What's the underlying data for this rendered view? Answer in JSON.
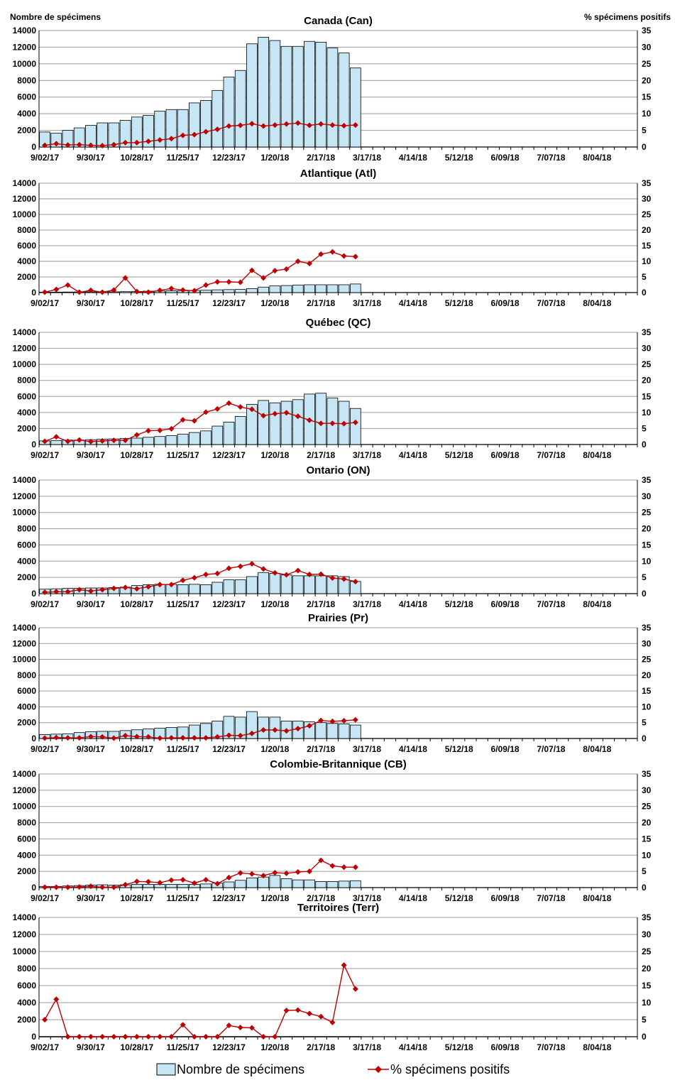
{
  "header": {
    "left_axis_label": "Nombre de spécimens",
    "right_axis_label": "% spécimens positifs"
  },
  "legend": {
    "bars_label": "Nombre de spécimens",
    "line_label": "% spécimens positifs"
  },
  "colors": {
    "bar_fill": "#c7e6f5",
    "bar_stroke": "#000000",
    "line": "#c00000",
    "grid": "#9a9a9a"
  },
  "chart_data": [
    {
      "type": "bar",
      "title": "Canada (Can)",
      "x": [
        "9/02/17",
        "9/09/17",
        "9/16/17",
        "9/23/17",
        "9/30/17",
        "10/07/17",
        "10/14/17",
        "10/21/17",
        "10/28/17",
        "11/04/17",
        "11/11/17",
        "11/18/17",
        "11/25/17",
        "12/02/17",
        "12/09/17",
        "12/16/17",
        "12/23/17",
        "12/30/17",
        "1/06/18",
        "1/13/18",
        "1/20/18",
        "1/27/18",
        "2/03/18",
        "2/10/18",
        "2/17/18",
        "2/24/18",
        "3/03/18",
        "3/10/18"
      ],
      "x_tick_labels": [
        "9/02/17",
        "9/30/17",
        "10/28/17",
        "11/25/17",
        "12/23/17",
        "1/20/18",
        "2/17/18",
        "3/17/18",
        "4/14/18",
        "5/12/18",
        "6/09/18",
        "7/07/18",
        "8/04/18"
      ],
      "ylim_left": [
        0,
        14000
      ],
      "ylim_right": [
        0,
        35
      ],
      "grid": true,
      "series": [
        {
          "name": "Nombre de spécimens",
          "type": "bar",
          "axis": "left",
          "values": [
            1800,
            1650,
            2000,
            2300,
            2600,
            2900,
            2900,
            3200,
            3600,
            3800,
            4300,
            4500,
            4500,
            5300,
            5600,
            6800,
            8400,
            9200,
            12400,
            13200,
            12800,
            12100,
            12100,
            12700,
            12600,
            11900,
            11300,
            9500
          ]
        },
        {
          "name": "% spécimens positifs",
          "type": "line",
          "axis": "right",
          "values": [
            0.5,
            1.0,
            0.6,
            0.7,
            0.5,
            0.4,
            0.7,
            1.3,
            1.3,
            1.7,
            2.1,
            2.5,
            3.5,
            3.7,
            4.6,
            5.3,
            6.3,
            6.5,
            7.0,
            6.3,
            6.6,
            6.9,
            7.2,
            6.5,
            6.9,
            6.6,
            6.4,
            6.6
          ]
        }
      ]
    },
    {
      "type": "bar",
      "title": "Atlantique (Atl)",
      "x": [
        "9/02/17",
        "9/09/17",
        "9/16/17",
        "9/23/17",
        "9/30/17",
        "10/07/17",
        "10/14/17",
        "10/21/17",
        "10/28/17",
        "11/04/17",
        "11/11/17",
        "11/18/17",
        "11/25/17",
        "12/02/17",
        "12/09/17",
        "12/16/17",
        "12/23/17",
        "12/30/17",
        "1/06/18",
        "1/13/18",
        "1/20/18",
        "1/27/18",
        "2/03/18",
        "2/10/18",
        "2/17/18",
        "2/24/18",
        "3/03/18",
        "3/10/18"
      ],
      "x_tick_labels": [
        "9/02/17",
        "9/30/17",
        "10/28/17",
        "11/25/17",
        "12/23/17",
        "1/20/18",
        "2/17/18",
        "3/17/18",
        "4/14/18",
        "5/12/18",
        "6/09/18",
        "7/07/18",
        "8/04/18"
      ],
      "ylim_left": [
        0,
        14000
      ],
      "ylim_right": [
        0,
        35
      ],
      "grid": true,
      "series": [
        {
          "name": "Nombre de spécimens",
          "type": "bar",
          "axis": "left",
          "values": [
            50,
            60,
            70,
            80,
            90,
            100,
            100,
            120,
            150,
            180,
            200,
            220,
            250,
            280,
            300,
            350,
            380,
            400,
            500,
            700,
            850,
            900,
            950,
            1000,
            1000,
            1000,
            1000,
            1100
          ]
        },
        {
          "name": "% spécimens positifs",
          "type": "line",
          "axis": "right",
          "values": [
            0.1,
            1.0,
            2.4,
            0.1,
            0.7,
            0.1,
            0.8,
            4.7,
            0.3,
            0.1,
            0.7,
            1.3,
            0.8,
            0.6,
            2.4,
            3.4,
            3.4,
            3.3,
            7.1,
            4.7,
            7.0,
            7.5,
            10.0,
            9.3,
            12.3,
            13.0,
            11.7,
            11.5
          ]
        }
      ]
    },
    {
      "type": "bar",
      "title": "Québec (QC)",
      "x": [
        "9/02/17",
        "9/09/17",
        "9/16/17",
        "9/23/17",
        "9/30/17",
        "10/07/17",
        "10/14/17",
        "10/21/17",
        "10/28/17",
        "11/04/17",
        "11/11/17",
        "11/18/17",
        "11/25/17",
        "12/02/17",
        "12/09/17",
        "12/16/17",
        "12/23/17",
        "12/30/17",
        "1/06/18",
        "1/13/18",
        "1/20/18",
        "1/27/18",
        "2/03/18",
        "2/10/18",
        "2/17/18",
        "2/24/18",
        "3/03/18",
        "3/10/18"
      ],
      "x_tick_labels": [
        "9/02/17",
        "9/30/17",
        "10/28/17",
        "11/25/17",
        "12/23/17",
        "1/20/18",
        "2/17/18",
        "3/17/18",
        "4/14/18",
        "5/12/18",
        "6/09/18",
        "7/07/18",
        "8/04/18"
      ],
      "ylim_left": [
        0,
        14000
      ],
      "ylim_right": [
        0,
        35
      ],
      "grid": true,
      "series": [
        {
          "name": "Nombre de spécimens",
          "type": "bar",
          "axis": "left",
          "values": [
            450,
            500,
            550,
            550,
            600,
            650,
            700,
            750,
            800,
            900,
            1000,
            1100,
            1300,
            1500,
            1700,
            2300,
            2800,
            3500,
            5000,
            5500,
            5200,
            5400,
            5600,
            6300,
            6400,
            5800,
            5400,
            4500
          ]
        },
        {
          "name": "% spécimens positifs",
          "type": "line",
          "axis": "right",
          "values": [
            1.0,
            2.4,
            1.0,
            1.4,
            0.9,
            1.1,
            1.3,
            1.3,
            3.0,
            4.3,
            4.4,
            4.9,
            7.7,
            7.4,
            10.1,
            11.1,
            12.9,
            11.7,
            11.0,
            9.0,
            9.6,
            9.9,
            8.8,
            7.6,
            6.6,
            6.6,
            6.5,
            6.9
          ]
        }
      ]
    },
    {
      "type": "bar",
      "title": "Ontario (ON)",
      "x": [
        "9/02/17",
        "9/09/17",
        "9/16/17",
        "9/23/17",
        "9/30/17",
        "10/07/17",
        "10/14/17",
        "10/21/17",
        "10/28/17",
        "11/04/17",
        "11/11/17",
        "11/18/17",
        "11/25/17",
        "12/02/17",
        "12/09/17",
        "12/16/17",
        "12/23/17",
        "12/30/17",
        "1/06/18",
        "1/13/18",
        "1/20/18",
        "1/27/18",
        "2/03/18",
        "2/10/18",
        "2/17/18",
        "2/24/18",
        "3/03/18",
        "3/10/18"
      ],
      "x_tick_labels": [
        "9/02/17",
        "9/30/17",
        "10/28/17",
        "11/25/17",
        "12/23/17",
        "1/20/18",
        "2/17/18",
        "3/17/18",
        "4/14/18",
        "5/12/18",
        "6/09/18",
        "7/07/18",
        "8/04/18"
      ],
      "ylim_left": [
        0,
        14000
      ],
      "ylim_right": [
        0,
        35
      ],
      "grid": true,
      "series": [
        {
          "name": "Nombre de spécimens",
          "type": "bar",
          "axis": "left",
          "values": [
            550,
            600,
            650,
            650,
            700,
            700,
            750,
            800,
            1000,
            1100,
            1150,
            1150,
            1100,
            1150,
            1100,
            1400,
            1700,
            1700,
            2100,
            2600,
            2500,
            2300,
            2200,
            2200,
            2200,
            2200,
            2100,
            1500
          ]
        },
        {
          "name": "% spécimens positifs",
          "type": "line",
          "axis": "right",
          "values": [
            0.4,
            0.6,
            0.6,
            1.2,
            0.8,
            1.2,
            1.6,
            1.9,
            1.5,
            2.1,
            2.8,
            2.8,
            4.1,
            4.9,
            5.9,
            6.2,
            7.8,
            8.4,
            9.2,
            7.6,
            6.4,
            5.8,
            7.1,
            5.9,
            6.0,
            4.8,
            4.5,
            3.7
          ]
        }
      ]
    },
    {
      "type": "bar",
      "title": "Prairies (Pr)",
      "x": [
        "9/02/17",
        "9/09/17",
        "9/16/17",
        "9/23/17",
        "9/30/17",
        "10/07/17",
        "10/14/17",
        "10/21/17",
        "10/28/17",
        "11/04/17",
        "11/11/17",
        "11/18/17",
        "11/25/17",
        "12/02/17",
        "12/09/17",
        "12/16/17",
        "12/23/17",
        "12/30/17",
        "1/06/18",
        "1/13/18",
        "1/20/18",
        "1/27/18",
        "2/03/18",
        "2/10/18",
        "2/17/18",
        "2/24/18",
        "3/03/18",
        "3/10/18"
      ],
      "x_tick_labels": [
        "9/02/17",
        "9/30/17",
        "10/28/17",
        "11/25/17",
        "12/23/17",
        "1/20/18",
        "2/17/18",
        "3/17/18",
        "4/14/18",
        "5/12/18",
        "6/09/18",
        "7/07/18",
        "8/04/18"
      ],
      "ylim_left": [
        0,
        14000
      ],
      "ylim_right": [
        0,
        35
      ],
      "grid": true,
      "series": [
        {
          "name": "Nombre de spécimens",
          "type": "bar",
          "axis": "left",
          "values": [
            500,
            550,
            600,
            750,
            850,
            900,
            900,
            1000,
            1100,
            1200,
            1300,
            1400,
            1450,
            1700,
            1900,
            2200,
            2800,
            2700,
            3400,
            2700,
            2700,
            2200,
            2200,
            2100,
            2000,
            1900,
            1850,
            1700
          ]
        },
        {
          "name": "% spécimens positifs",
          "type": "line",
          "axis": "right",
          "values": [
            0.1,
            0.3,
            0.2,
            0.2,
            0.6,
            0.5,
            0.1,
            0.9,
            0.6,
            0.5,
            0.1,
            0.2,
            0.2,
            0.2,
            0.2,
            0.5,
            1.0,
            0.9,
            1.6,
            2.7,
            2.7,
            2.4,
            3.1,
            4.0,
            5.7,
            5.4,
            5.6,
            5.9
          ]
        }
      ]
    },
    {
      "type": "bar",
      "title": "Colombie-Britannique (CB)",
      "x": [
        "9/02/17",
        "9/09/17",
        "9/16/17",
        "9/23/17",
        "9/30/17",
        "10/07/17",
        "10/14/17",
        "10/21/17",
        "10/28/17",
        "11/04/17",
        "11/11/17",
        "11/18/17",
        "11/25/17",
        "12/02/17",
        "12/09/17",
        "12/16/17",
        "12/23/17",
        "12/30/17",
        "1/06/18",
        "1/13/18",
        "1/20/18",
        "1/27/18",
        "2/03/18",
        "2/10/18",
        "2/17/18",
        "2/24/18",
        "3/03/18",
        "3/10/18"
      ],
      "x_tick_labels": [
        "9/02/17",
        "9/30/17",
        "10/28/17",
        "11/25/17",
        "12/23/17",
        "1/20/18",
        "2/17/18",
        "3/17/18",
        "4/14/18",
        "5/12/18",
        "6/09/18",
        "7/07/18",
        "8/04/18"
      ],
      "ylim_left": [
        0,
        14000
      ],
      "ylim_right": [
        0,
        35
      ],
      "grid": true,
      "series": [
        {
          "name": "Nombre de spécimens",
          "type": "bar",
          "axis": "left",
          "values": [
            150,
            150,
            200,
            250,
            300,
            350,
            300,
            350,
            400,
            400,
            400,
            400,
            400,
            400,
            450,
            550,
            700,
            900,
            1200,
            1300,
            1500,
            1100,
            950,
            950,
            750,
            750,
            800,
            850
          ]
        },
        {
          "name": "% spécimens positifs",
          "type": "line",
          "axis": "right",
          "values": [
            0.1,
            0.1,
            0.1,
            0.2,
            0.4,
            0.1,
            0.1,
            0.9,
            1.9,
            1.8,
            1.5,
            2.3,
            2.4,
            1.4,
            2.4,
            1.2,
            3.1,
            4.5,
            4.2,
            3.7,
            4.6,
            4.4,
            4.8,
            5.0,
            8.4,
            6.7,
            6.3,
            6.3
          ]
        }
      ]
    },
    {
      "type": "bar",
      "title": "Territoires (Terr)",
      "x": [
        "9/02/17",
        "9/09/17",
        "9/16/17",
        "9/23/17",
        "9/30/17",
        "10/07/17",
        "10/14/17",
        "10/21/17",
        "10/28/17",
        "11/04/17",
        "11/11/17",
        "11/18/17",
        "11/25/17",
        "12/02/17",
        "12/09/17",
        "12/16/17",
        "12/23/17",
        "12/30/17",
        "1/06/18",
        "1/13/18",
        "1/20/18",
        "1/27/18",
        "2/03/18",
        "2/10/18",
        "2/17/18",
        "2/24/18",
        "3/03/18",
        "3/10/18"
      ],
      "x_tick_labels": [
        "9/02/17",
        "9/30/17",
        "10/28/17",
        "11/25/17",
        "12/23/17",
        "1/20/18",
        "2/17/18",
        "3/17/18",
        "4/14/18",
        "5/12/18",
        "6/09/18",
        "7/07/18",
        "8/04/18"
      ],
      "ylim_left": [
        0,
        14000
      ],
      "ylim_right": [
        0,
        35
      ],
      "grid": true,
      "series": [
        {
          "name": "Nombre de spécimens",
          "type": "bar",
          "axis": "left",
          "values": [
            20,
            20,
            20,
            20,
            20,
            20,
            20,
            20,
            20,
            20,
            20,
            20,
            20,
            20,
            20,
            20,
            20,
            20,
            20,
            20,
            20,
            20,
            20,
            20,
            20,
            20,
            20,
            20
          ]
        },
        {
          "name": "% spécimens positifs",
          "type": "line",
          "axis": "right",
          "values": [
            5.0,
            11.0,
            0,
            0,
            0,
            0,
            0,
            0,
            0,
            0,
            0,
            0,
            3.5,
            0,
            0,
            0,
            3.3,
            2.7,
            2.6,
            0,
            0,
            7.7,
            7.8,
            6.8,
            5.9,
            4.2,
            21.0,
            14.0
          ]
        }
      ]
    }
  ]
}
